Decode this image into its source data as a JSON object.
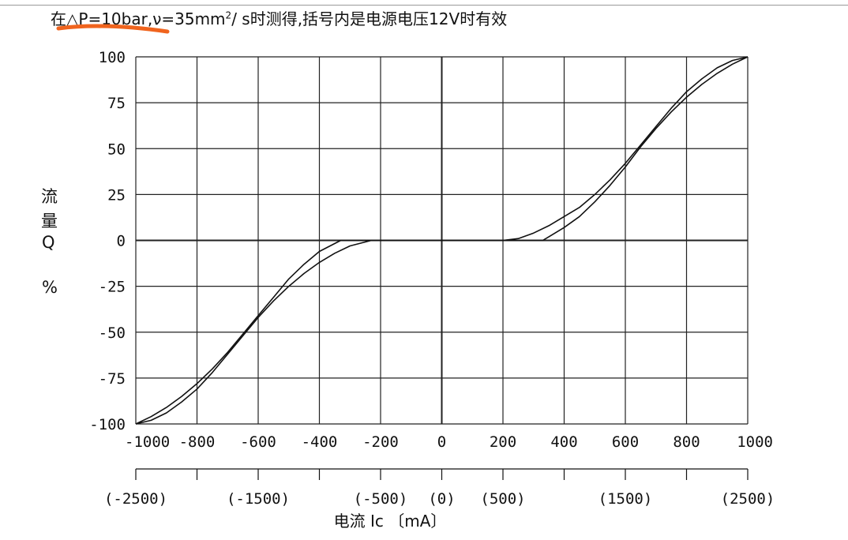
{
  "caption": {
    "prefix": "在△",
    "condition": "P=10bar,ν=35mm",
    "superscript": "2",
    "suffix": "/ s时测得,括号内是电源电压12V时有效"
  },
  "colors": {
    "ink": "#111111",
    "highlight": "#f0641e",
    "grid": "#222222"
  },
  "chart_data": {
    "type": "line",
    "title": "",
    "ylabel": [
      "流",
      "量",
      "Q",
      "%"
    ],
    "xlabel": "电流 Ic 〔mA〕",
    "xlim": [
      -1000,
      1000
    ],
    "ylim": [
      -100,
      100
    ],
    "grid": true,
    "xticks": [
      -1000,
      -800,
      -600,
      -400,
      -200,
      0,
      200,
      400,
      600,
      800,
      1000
    ],
    "xtick_labels": [
      "-1000",
      "-800",
      "-600",
      "-400",
      "-200",
      "0",
      "200",
      "400",
      "600",
      "800",
      "1000"
    ],
    "yticks": [
      100,
      75,
      50,
      25,
      0,
      -25,
      -50,
      -75,
      -100
    ],
    "ytick_labels": [
      "100",
      "75",
      "50",
      "25",
      "0",
      "-25",
      "-50",
      "-75",
      "-100"
    ],
    "secondary_x_ticks": [
      -1000,
      -800,
      -600,
      -400,
      -200,
      0,
      200,
      400,
      600,
      800,
      1000
    ],
    "secondary_x_labels": [
      {
        "at": -1000,
        "text": "(-2500)"
      },
      {
        "at": -600,
        "text": "(-1500)"
      },
      {
        "at": -200,
        "text": "(-500)"
      },
      {
        "at": 0,
        "text": "(0)"
      },
      {
        "at": 200,
        "text": "(500)"
      },
      {
        "at": 600,
        "text": "(1500)"
      },
      {
        "at": 1000,
        "text": "(2500)"
      }
    ],
    "series": [
      {
        "x": [
          -1000,
          -950,
          -900,
          -850,
          -800,
          -750,
          -700,
          -650,
          -600,
          -550,
          -500,
          -450,
          -400,
          -330,
          0,
          200,
          250,
          300,
          350,
          400,
          450,
          500,
          550,
          600,
          650,
          700,
          750,
          800,
          850,
          900,
          950,
          1000
        ],
        "y": [
          -100,
          -96,
          -91,
          -85,
          -78,
          -70,
          -61,
          -51,
          -41,
          -31,
          -21,
          -13,
          -6,
          0,
          0,
          0,
          1,
          4,
          8,
          13,
          18,
          25,
          33,
          42,
          52,
          62,
          72,
          81,
          88,
          94,
          98,
          100
        ]
      },
      {
        "x": [
          -1000,
          -950,
          -900,
          -850,
          -800,
          -750,
          -700,
          -650,
          -600,
          -550,
          -500,
          -450,
          -400,
          -350,
          -300,
          -230,
          0,
          330,
          350,
          400,
          450,
          500,
          550,
          600,
          650,
          700,
          750,
          800,
          850,
          900,
          950,
          1000
        ],
        "y": [
          -100,
          -98,
          -94,
          -88,
          -81,
          -72,
          -62,
          -52,
          -42,
          -33,
          -25,
          -18,
          -12,
          -7,
          -3,
          0,
          0,
          0,
          2,
          7,
          13,
          21,
          30,
          40,
          51,
          61,
          70,
          78,
          85,
          91,
          96,
          100
        ]
      }
    ]
  }
}
